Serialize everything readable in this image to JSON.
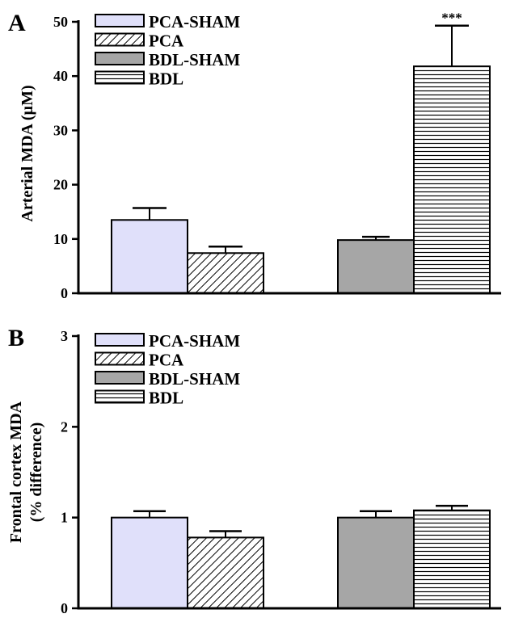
{
  "chart_data": [
    {
      "type": "bar",
      "panel_label": "A",
      "ylabel": "Arterial MDA (µM)",
      "ylim": [
        0,
        50
      ],
      "yticks": [
        "0",
        "10",
        "20",
        "30",
        "40",
        "50"
      ],
      "categories": [
        "PCA-SHAM",
        "PCA",
        "BDL-SHAM",
        "BDL"
      ],
      "values": [
        13.5,
        7.4,
        9.8,
        41.8
      ],
      "errors": [
        2.2,
        1.2,
        0.6,
        7.5
      ],
      "significance": [
        "",
        "",
        "",
        "***"
      ],
      "legend": [
        "PCA-SHAM",
        "PCA",
        "BDL-SHAM",
        "BDL"
      ],
      "legend_position": "top-left",
      "grid": false
    },
    {
      "type": "bar",
      "panel_label": "B",
      "ylabel": [
        "Frontal cortex MDA",
        "(% difference)"
      ],
      "ylim": [
        0,
        3
      ],
      "yticks": [
        "0",
        "1",
        "2",
        "3"
      ],
      "categories": [
        "PCA-SHAM",
        "PCA",
        "BDL-SHAM",
        "BDL"
      ],
      "values": [
        1.0,
        0.78,
        1.0,
        1.08
      ],
      "errors": [
        0.07,
        0.07,
        0.07,
        0.05
      ],
      "significance": [
        "",
        "",
        "",
        ""
      ],
      "legend": [
        "PCA-SHAM",
        "PCA",
        "BDL-SHAM",
        "BDL"
      ],
      "legend_position": "top-left",
      "grid": false
    }
  ],
  "colors": {
    "pca_sham_fill": "#e0e0fa",
    "bdl_sham_fill": "#a6a6a6",
    "pattern_stroke": "#000000",
    "axis": "#000000"
  },
  "fill_styles": [
    "solid-lavender",
    "diagonal-hatch",
    "solid-gray",
    "horizontal-lines"
  ]
}
